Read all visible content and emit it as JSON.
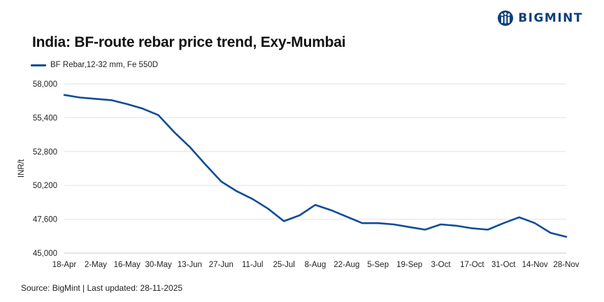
{
  "brand": {
    "name": "BIGMINT",
    "logo_icon": "bigmint-logo-icon",
    "color": "#0b3f7c"
  },
  "title": "India: BF-route rebar price trend, Exy-Mumbai",
  "source": "Source: BigMint | Last updated: 28-11-2025",
  "chart_data": {
    "type": "line",
    "title": "India: BF-route rebar price trend, Exy-Mumbai",
    "xlabel": "",
    "ylabel": "INR/t",
    "ylim": [
      45000,
      58000
    ],
    "yticks": [
      45000,
      47600,
      50200,
      52800,
      55400,
      58000
    ],
    "ytick_labels": [
      "45,000",
      "47,600",
      "50,200",
      "52,800",
      "55,400",
      "58,000"
    ],
    "grid": true,
    "legend": "top-left",
    "x_tick_labels": [
      "18-Apr",
      "2-May",
      "16-May",
      "30-May",
      "13-Jun",
      "27-Jun",
      "11-Jul",
      "25-Jul",
      "8-Aug",
      "22-Aug",
      "5-Sep",
      "19-Sep",
      "3-Oct",
      "17-Oct",
      "31-Oct",
      "14-Nov",
      "28-Nov"
    ],
    "x": [
      "18-Apr",
      "25-Apr",
      "2-May",
      "9-May",
      "16-May",
      "23-May",
      "30-May",
      "6-Jun",
      "13-Jun",
      "20-Jun",
      "27-Jun",
      "4-Jul",
      "11-Jul",
      "18-Jul",
      "25-Jul",
      "1-Aug",
      "8-Aug",
      "15-Aug",
      "22-Aug",
      "29-Aug",
      "5-Sep",
      "12-Sep",
      "19-Sep",
      "26-Sep",
      "3-Oct",
      "10-Oct",
      "17-Oct",
      "24-Oct",
      "31-Oct",
      "7-Nov",
      "14-Nov",
      "21-Nov",
      "28-Nov"
    ],
    "series": [
      {
        "name": "BF Rebar,12-32 mm, Fe 550D",
        "color": "#0f4c97",
        "values": [
          57150,
          56950,
          56850,
          56750,
          56450,
          56100,
          55600,
          54300,
          53150,
          51800,
          50500,
          49750,
          49150,
          48400,
          47450,
          47900,
          48700,
          48300,
          47800,
          47300,
          47300,
          47200,
          47000,
          46800,
          47200,
          47100,
          46900,
          46800,
          47300,
          47750,
          47300,
          46550,
          46250
        ]
      }
    ]
  }
}
